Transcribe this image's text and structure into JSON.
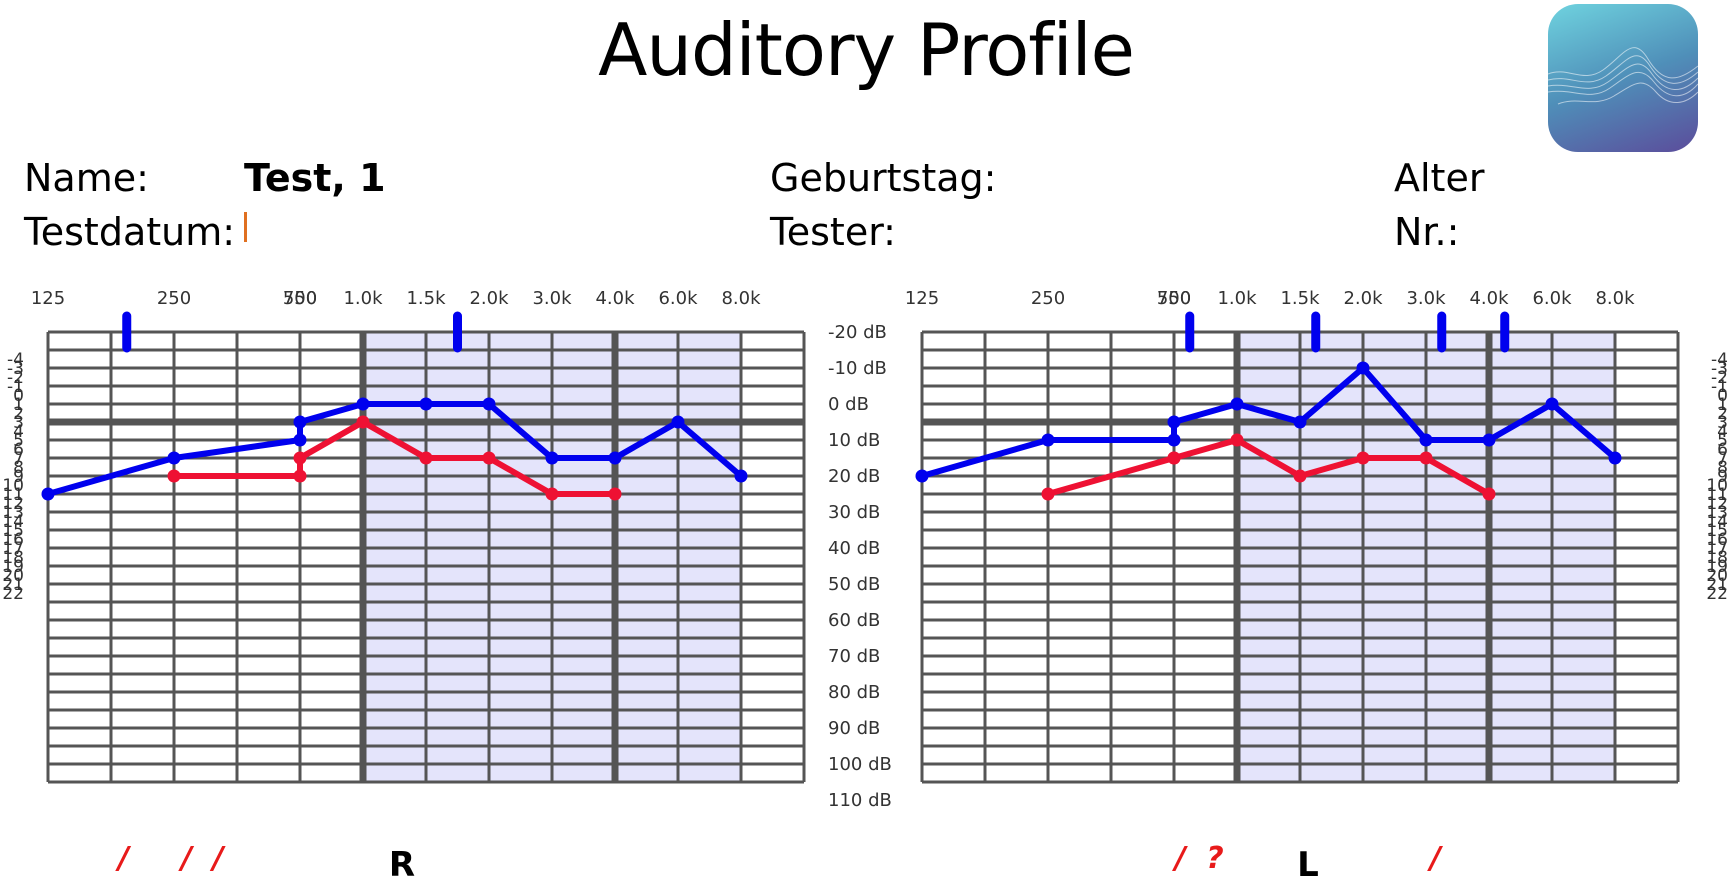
{
  "header": {
    "title": "Auditory Profile",
    "logo_icon": "waveform-icon"
  },
  "patient": {
    "name_label": "Name:",
    "name_value": "Test, 1",
    "testdate_label": "Testdatum:",
    "birthday_label": "Geburtstag:",
    "tester_label": "Tester:",
    "age_label": "Alter",
    "nr_label": "Nr.:"
  },
  "colors": {
    "blue_series": "#0000ee",
    "red_series": "#ee1133",
    "grid": "#555555",
    "highlight": "#e4e4fb",
    "marker_red": "#e81a1a"
  },
  "chart_data": [
    {
      "type": "line",
      "ear_label": "R",
      "x_labels": [
        "125",
        "250",
        "500",
        "750",
        "1.0k",
        "1.5k",
        "2.0k",
        "3.0k",
        "4.0k",
        "6.0k",
        "8.0k"
      ],
      "db_ticks": [
        "-20 dB",
        "-10 dB",
        "0 dB",
        "10 dB",
        "20 dB",
        "30 dB",
        "40 dB",
        "50 dB",
        "60 dB",
        "70 dB",
        "80 dB",
        "90 dB",
        "100 dB",
        "110 dB"
      ],
      "scale_ticks": [
        "-4",
        "-3",
        "-2",
        "-1",
        "0",
        "1",
        "2",
        "3",
        "4",
        "5",
        "6",
        "7",
        "8",
        "9",
        "10",
        "11",
        "12",
        "13",
        "14",
        "15",
        "16",
        "17",
        "18",
        "19",
        "20",
        "21",
        "22"
      ],
      "ylim": [
        -20,
        110
      ],
      "highlight_from": "1.0k",
      "highlight_to": "8.0k",
      "series": [
        {
          "color": "blue",
          "x": [
            "125",
            "250",
            "500",
            "750",
            "1.0k",
            "1.5k",
            "2.0k",
            "3.0k",
            "4.0k",
            "6.0k",
            "8.0k"
          ],
          "values": [
            25,
            15,
            10,
            5,
            0,
            0,
            0,
            15,
            15,
            5,
            20
          ]
        },
        {
          "color": "red",
          "x": [
            "250",
            "500",
            "750",
            "1.0k",
            "1.5k",
            "2.0k",
            "3.0k",
            "4.0k"
          ],
          "values": [
            20,
            20,
            15,
            5,
            15,
            15,
            25,
            25
          ]
        }
      ],
      "top_markers": [
        1.25,
        6.5
      ],
      "bottom_markers": [
        {
          "at": 1.2,
          "text": "/"
        },
        {
          "at": 2.2,
          "text": "/"
        },
        {
          "at": 2.7,
          "text": "/"
        }
      ]
    },
    {
      "type": "line",
      "ear_label": "L",
      "x_labels": [
        "125",
        "250",
        "500",
        "750",
        "1.0k",
        "1.5k",
        "2.0k",
        "3.0k",
        "4.0k",
        "6.0k",
        "8.0k"
      ],
      "db_ticks": [],
      "scale_ticks": [
        "-4",
        "-3",
        "-2",
        "-1",
        "0",
        "1",
        "2",
        "3",
        "4",
        "5",
        "6",
        "7",
        "8",
        "9",
        "10",
        "11",
        "12",
        "13",
        "14",
        "15",
        "16",
        "17",
        "18",
        "19",
        "20",
        "21",
        "22"
      ],
      "ylim": [
        -20,
        110
      ],
      "highlight_from": "1.0k",
      "highlight_to": "8.0k",
      "series": [
        {
          "color": "blue",
          "x": [
            "125",
            "250",
            "500",
            "750",
            "1.0k",
            "1.5k",
            "2.0k",
            "3.0k",
            "4.0k",
            "6.0k",
            "8.0k"
          ],
          "values": [
            20,
            10,
            10,
            5,
            0,
            5,
            -10,
            10,
            10,
            0,
            15
          ]
        },
        {
          "color": "red",
          "x": [
            "250",
            "500",
            "750",
            "1.0k",
            "1.5k",
            "2.0k",
            "3.0k",
            "4.0k"
          ],
          "values": [
            25,
            15,
            15,
            10,
            20,
            15,
            15,
            25
          ]
        }
      ],
      "top_markers": [
        4.25,
        6.25,
        8.25,
        9.25
      ],
      "bottom_markers": [
        {
          "at": 4.1,
          "text": "/"
        },
        {
          "at": 4.65,
          "text": "?"
        },
        {
          "at": 8.15,
          "text": "/"
        }
      ]
    }
  ]
}
